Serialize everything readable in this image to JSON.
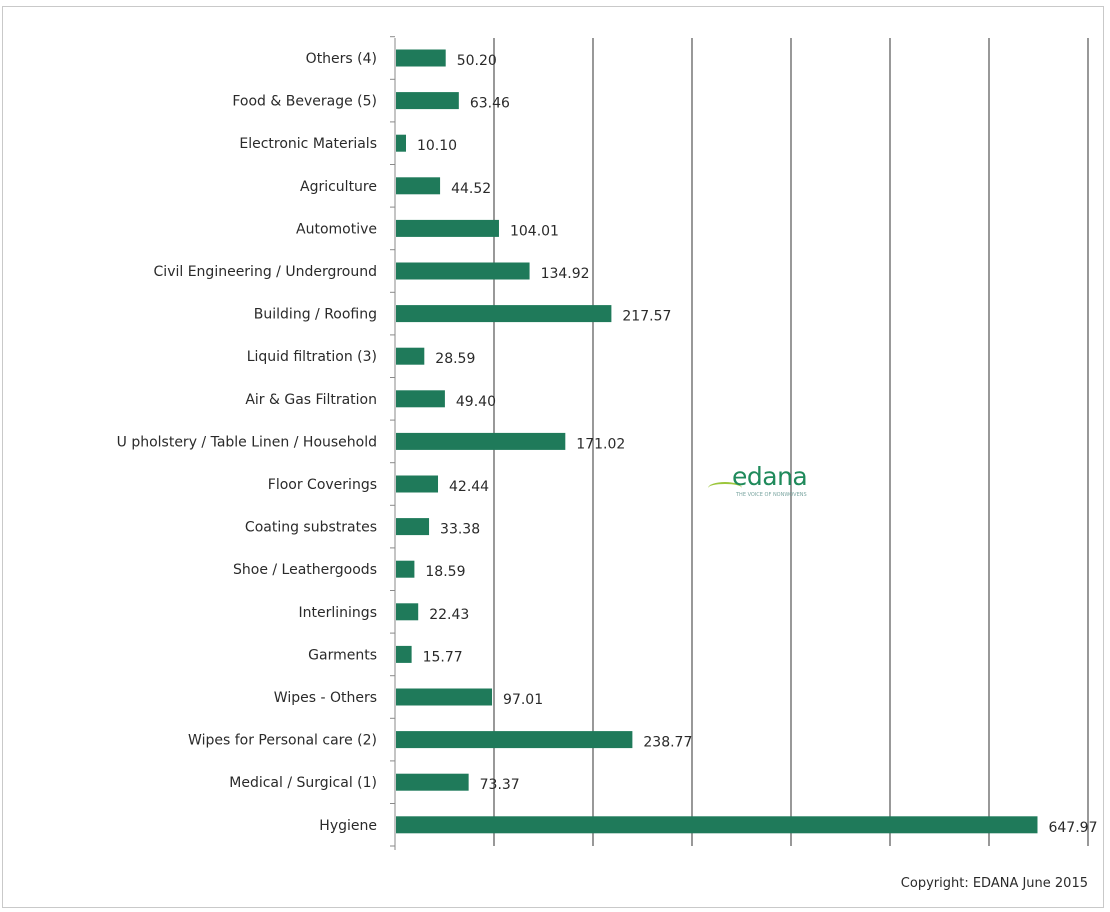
{
  "chart_data": {
    "type": "bar",
    "orientation": "horizontal",
    "categories": [
      "Others (4)",
      "Food & Beverage (5)",
      "Electronic Materials",
      "Agriculture",
      "Automotive",
      "Civil Engineering / Underground",
      "Building / Roofing",
      "Liquid filtration (3)",
      "Air & Gas Filtration",
      "U pholstery / Table Linen / Household",
      "Floor Coverings",
      "Coating substrates",
      "Shoe / Leathergoods",
      "Interlinings",
      "Garments",
      "Wipes - Others",
      "Wipes for Personal care  (2)",
      "Medical / Surgical   (1)",
      "Hygiene"
    ],
    "values": [
      50.2,
      63.46,
      10.1,
      44.52,
      104.01,
      134.92,
      217.57,
      28.59,
      49.4,
      171.02,
      42.44,
      33.38,
      18.59,
      22.43,
      15.77,
      97.01,
      238.77,
      73.37,
      647.97
    ],
    "value_labels": [
      "50.20",
      "63.46",
      "10.10",
      "44.52",
      "104.01",
      "134.92",
      "217.57",
      "28.59",
      "49.40",
      "171.02",
      "42.44",
      "33.38",
      "18.59",
      "22.43",
      "15.77",
      "97.01",
      "238.77",
      "73.37",
      "647.97"
    ],
    "xlim": [
      0,
      700
    ],
    "x_gridline_step": 100,
    "grid": true,
    "legend": "none",
    "bar_color": "#1f7a5a",
    "title": "",
    "xlabel": "",
    "ylabel": ""
  },
  "footer": {
    "copyright": "Copyright: EDANA June 2015"
  },
  "logo": {
    "name": "edana",
    "text": "edana",
    "tagline": "THE VOICE OF NONWOVENS"
  },
  "colors": {
    "bar": "#1f7a5a",
    "gridline": "#555555",
    "logo_green": "#1f8a5b"
  }
}
